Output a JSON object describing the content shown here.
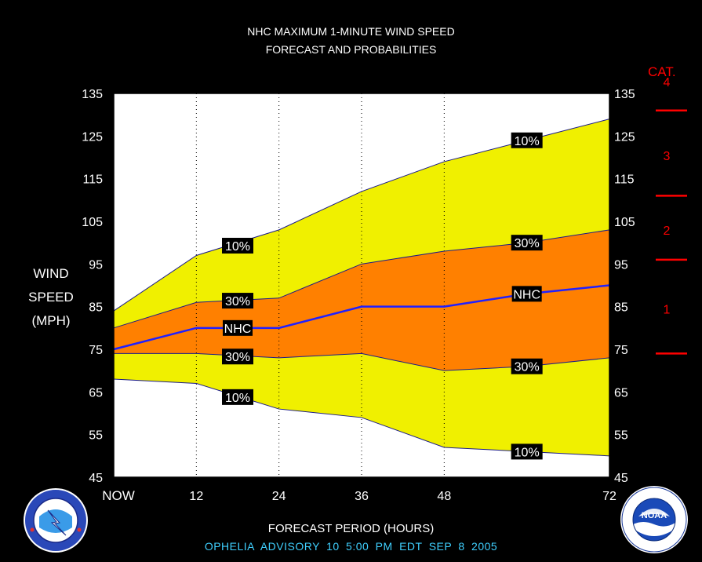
{
  "chart_data": {
    "type": "area",
    "title": "NHC MAXIMUM 1-MINUTE WIND SPEED",
    "subtitle": "FORECAST AND PROBABILITIES",
    "ylabel": [
      "WIND",
      "SPEED",
      "(MPH)"
    ],
    "xlabel": "FORECAST PERIOD (HOURS)",
    "footer": "OPHELIA   ADVISORY  10 5:00  PM  EDT  SEP  8  2005",
    "x": [
      0,
      12,
      24,
      36,
      48,
      60,
      72
    ],
    "xticks": [
      0,
      12,
      24,
      36,
      48,
      72
    ],
    "xtick_labels": [
      "NOW",
      "12",
      "24",
      "36",
      "48",
      "72"
    ],
    "xlim": [
      0,
      72
    ],
    "ylim": [
      45,
      135
    ],
    "yticks": [
      45,
      55,
      65,
      75,
      85,
      95,
      105,
      115,
      125,
      135
    ],
    "series": [
      {
        "name": "10%",
        "values": [
          84,
          97,
          103,
          112,
          119,
          124,
          129
        ]
      },
      {
        "name": "30%",
        "values": [
          80,
          86,
          87,
          95,
          98,
          100,
          103
        ]
      },
      {
        "name": "NHC",
        "values": [
          75,
          80,
          80,
          85,
          85,
          88,
          90
        ]
      },
      {
        "name": "30%",
        "values": [
          74,
          74,
          73,
          74,
          70,
          71,
          73
        ]
      },
      {
        "name": "10%",
        "values": [
          68,
          67,
          61,
          59,
          52,
          51,
          50
        ]
      }
    ],
    "labels": [
      {
        "text": "10%",
        "x": 18,
        "y": 99.3
      },
      {
        "text": "30%",
        "x": 18,
        "y": 86.4
      },
      {
        "text": "NHC",
        "x": 18,
        "y": 80
      },
      {
        "text": "30%",
        "x": 18,
        "y": 73.3
      },
      {
        "text": "10%",
        "x": 18,
        "y": 63.8
      },
      {
        "text": "10%",
        "x": 60,
        "y": 124
      },
      {
        "text": "30%",
        "x": 60,
        "y": 100
      },
      {
        "text": "NHC",
        "x": 60,
        "y": 88
      },
      {
        "text": "30%",
        "x": 60,
        "y": 71
      },
      {
        "text": "10%",
        "x": 60,
        "y": 51
      }
    ],
    "categories_title": "CAT.",
    "category_levels": [
      {
        "label": "1",
        "min": 74,
        "max": 95
      },
      {
        "label": "2",
        "min": 96,
        "max": 110
      },
      {
        "label": "3",
        "min": 111,
        "max": 130
      },
      {
        "label": "4",
        "min": 131,
        "max": 155
      }
    ],
    "category_boundaries": [
      74,
      96,
      111,
      131
    ],
    "colors": {
      "background": "#000000",
      "outer_band": "#f0f000",
      "inner_band": "#ff8000",
      "nhc_line": "#2020ff",
      "category": "#ff0000",
      "footer": "#3fd0ff"
    },
    "grid": "dotted vertical at x ticks"
  },
  "logos": {
    "nws": "nws-logo",
    "noaa": "noaa-logo",
    "noaa_text": "NOAA"
  }
}
